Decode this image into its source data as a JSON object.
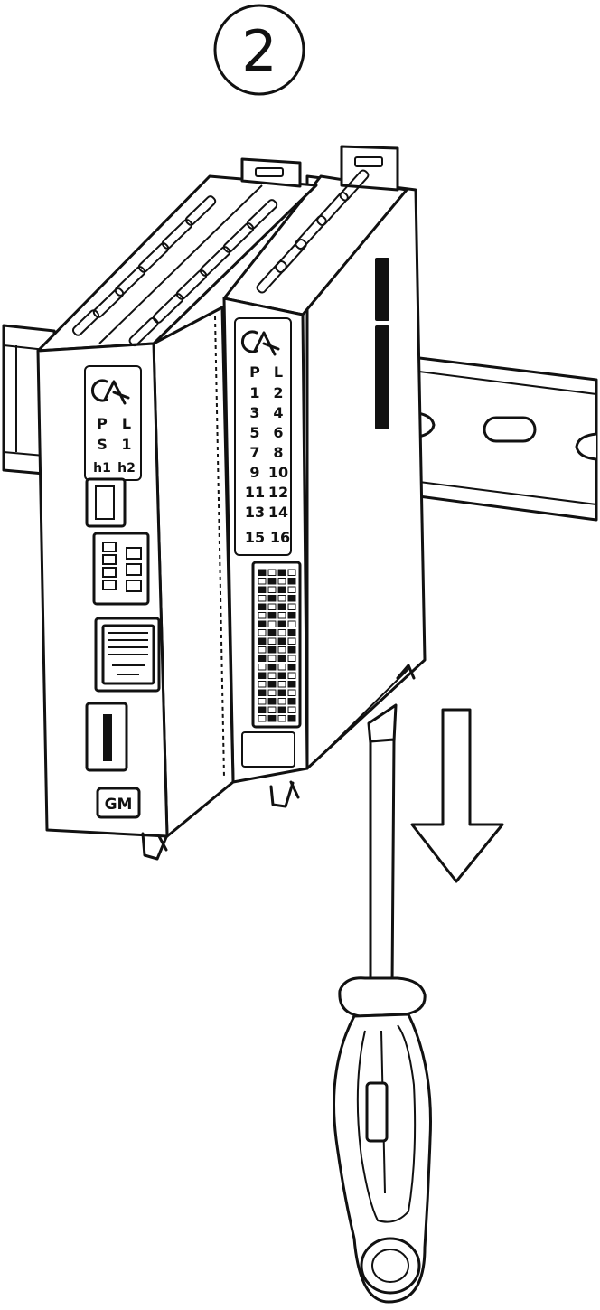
{
  "step": {
    "number": "2"
  },
  "left_module": {
    "status_labels": [
      "P",
      "L",
      "S",
      "1",
      "h1",
      "h2"
    ],
    "badge": "GM"
  },
  "right_module": {
    "io_labels": [
      "P",
      "L",
      "1",
      "2",
      "3",
      "4",
      "5",
      "6",
      "7",
      "8",
      "9",
      "10",
      "11",
      "12",
      "13",
      "14",
      "15",
      "16"
    ]
  },
  "icons": {
    "arrow": "down-arrow-icon",
    "tool": "screwdriver-icon",
    "logo": "brand-logo-icon"
  }
}
